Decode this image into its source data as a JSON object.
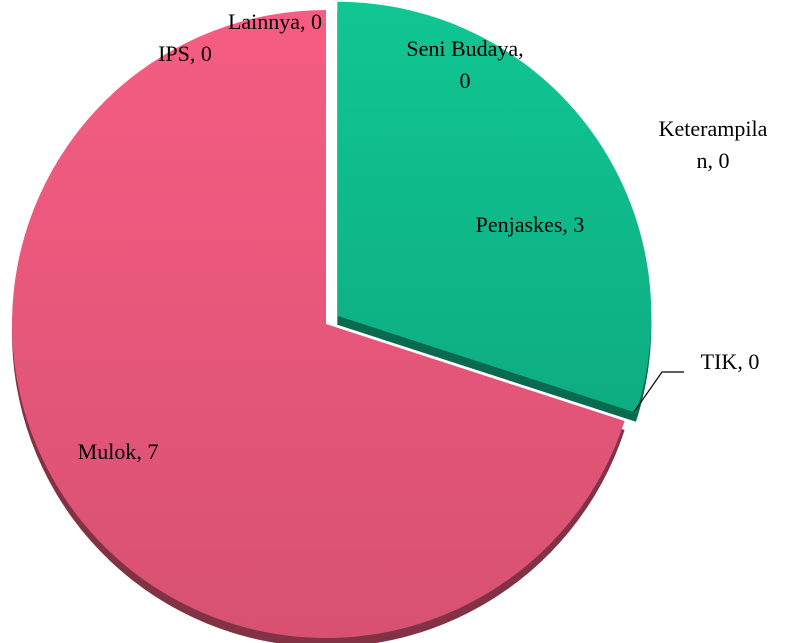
{
  "chart_data": {
    "type": "pie",
    "categories": [
      "Seni Budaya",
      "Keterampilan",
      "Penjaskes",
      "TIK",
      "Mulok",
      "IPS",
      "Lainnya"
    ],
    "values": [
      0,
      0,
      3,
      0,
      7,
      0,
      0
    ],
    "value_labels": [
      "Seni Budaya, 0",
      "Keterampilan, 0",
      "Penjaskes, 3",
      "TIK, 0",
      "Mulok, 7",
      "IPS, 0",
      "Lainnya, 0"
    ],
    "colors": [
      "#4472c4",
      "#ed7d31",
      "#10c08f",
      "#ffc000",
      "#ef5a7f",
      "#5b9bd5",
      "#70ad47"
    ]
  }
}
